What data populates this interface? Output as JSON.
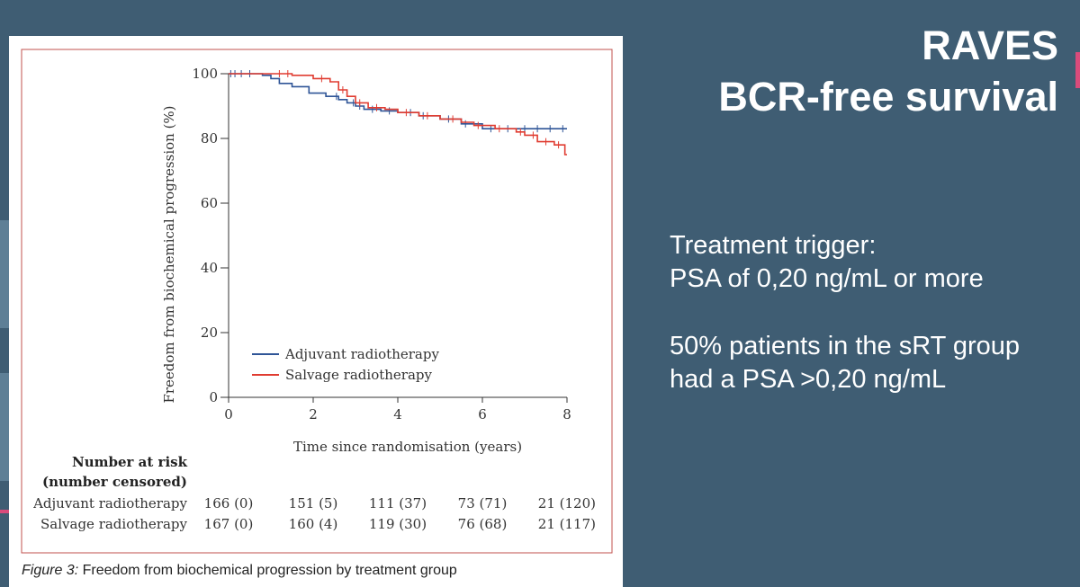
{
  "slide": {
    "title_line1": "RAVES",
    "title_line2": "BCR-free survival",
    "bullets": {
      "p1_line1": "Treatment trigger:",
      "p1_line2": "PSA of 0,20 ng/mL or more",
      "p2_line1": "50% patients in the sRT group",
      "p2_line2": "had a PSA >0,20 ng/mL"
    },
    "colors": {
      "background": "#3f5d73",
      "text": "#ffffff",
      "accent": "#d94b7b"
    }
  },
  "figure": {
    "caption_label": "Figure 3:",
    "caption_text": " Freedom from biochemical progression by treatment group",
    "border_color": "#c0504d"
  },
  "chart_data": {
    "type": "line",
    "xlabel": "Time since randomisation (years)",
    "ylabel": "Freedom from biochemical progression (%)",
    "xlim": [
      0,
      8
    ],
    "ylim": [
      0,
      100
    ],
    "xticks": [
      0,
      2,
      4,
      6,
      8
    ],
    "yticks": [
      0,
      20,
      40,
      60,
      80,
      100
    ],
    "grid": false,
    "legend_position": "bottom-left",
    "series": [
      {
        "name": "Adjuvant radiotherapy",
        "color": "#2f5597",
        "step": true,
        "x": [
          0,
          0.8,
          1.0,
          1.2,
          1.5,
          1.9,
          2.3,
          2.6,
          2.8,
          3.0,
          3.2,
          3.6,
          4.0,
          4.5,
          5.0,
          5.5,
          6.0,
          6.5,
          7.0,
          8.0
        ],
        "y": [
          100,
          99.5,
          98.5,
          97,
          96,
          94,
          93,
          92,
          91,
          90,
          89,
          88.5,
          88,
          87,
          86,
          84.5,
          83,
          83,
          83,
          83
        ],
        "censored_x": [
          0.05,
          0.15,
          0.3,
          0.5,
          2.55,
          2.95,
          3.1,
          3.4,
          3.8,
          4.3,
          4.6,
          5.2,
          5.6,
          6.2,
          6.6,
          7.0,
          7.3,
          7.6,
          7.9
        ]
      },
      {
        "name": "Salvage radiotherapy",
        "color": "#e03c31",
        "step": true,
        "x": [
          0,
          1.0,
          1.5,
          2.0,
          2.4,
          2.6,
          2.8,
          3.0,
          3.3,
          3.7,
          4.0,
          4.5,
          5.0,
          5.5,
          5.8,
          6.3,
          6.8,
          7.0,
          7.3,
          7.7,
          7.95,
          8.0
        ],
        "y": [
          100,
          100,
          99.5,
          98.5,
          97.5,
          95,
          93,
          91,
          89.5,
          89,
          88,
          87,
          86,
          85,
          84,
          83,
          82,
          81,
          79,
          78,
          75,
          75
        ],
        "censored_x": [
          1.2,
          1.4,
          2.2,
          2.7,
          3.1,
          3.5,
          4.2,
          4.7,
          5.3,
          5.9,
          6.4,
          6.9,
          7.2,
          7.5,
          7.8
        ]
      }
    ],
    "number_at_risk": {
      "header_line1": "Number at risk",
      "header_line2": "(number censored)",
      "rows": [
        {
          "label": "Adjuvant radiotherapy",
          "values": [
            "166 (0)",
            "151 (5)",
            "111 (37)",
            "73 (71)",
            "21 (120)"
          ]
        },
        {
          "label": "Salvage radiotherapy",
          "values": [
            "167 (0)",
            "160 (4)",
            "119 (30)",
            "76 (68)",
            "21 (117)"
          ]
        }
      ]
    }
  }
}
